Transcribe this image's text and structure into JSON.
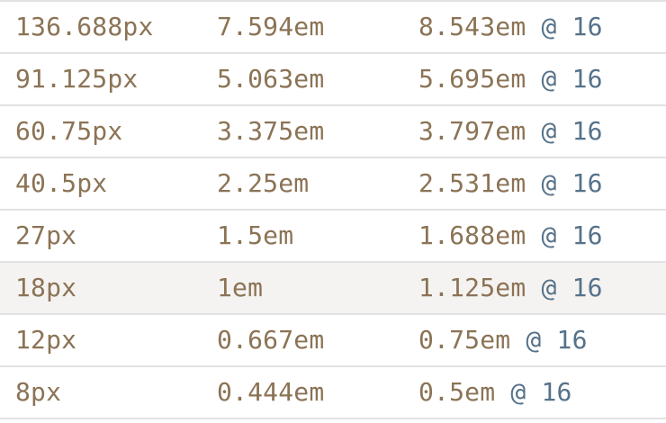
{
  "rows": [
    {
      "px": "136.688px",
      "em": "7.594em",
      "em_at_base": "8.543em",
      "base": "@ 16",
      "highlighted": false
    },
    {
      "px": "91.125px",
      "em": "5.063em",
      "em_at_base": "5.695em",
      "base": "@ 16",
      "highlighted": false
    },
    {
      "px": "60.75px",
      "em": "3.375em",
      "em_at_base": "3.797em",
      "base": "@ 16",
      "highlighted": false
    },
    {
      "px": "40.5px",
      "em": "2.25em",
      "em_at_base": "2.531em",
      "base": "@ 16",
      "highlighted": false
    },
    {
      "px": "27px",
      "em": "1.5em",
      "em_at_base": "1.688em",
      "base": "@ 16",
      "highlighted": false
    },
    {
      "px": "18px",
      "em": "1em",
      "em_at_base": "1.125em",
      "base": "@ 16",
      "highlighted": true
    },
    {
      "px": "12px",
      "em": "0.667em",
      "em_at_base": "0.75em",
      "base": "@ 16",
      "highlighted": false
    },
    {
      "px": "8px",
      "em": "0.444em",
      "em_at_base": "0.5em",
      "base": "@ 16",
      "highlighted": false
    }
  ],
  "colors": {
    "value_text": "#8b7355",
    "base_text": "#56728a",
    "row_border": "#e2e2e2",
    "highlight_bg": "#f5f3f1"
  }
}
